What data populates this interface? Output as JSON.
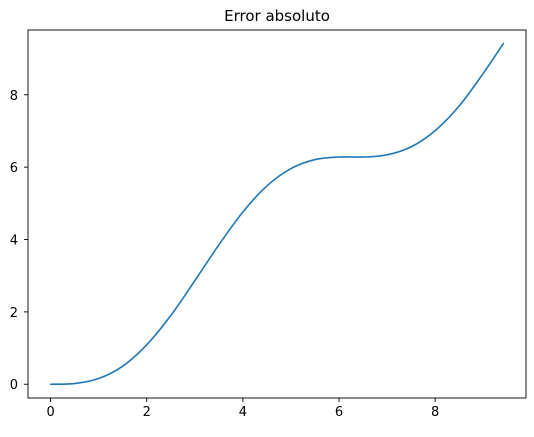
{
  "chart_data": {
    "type": "line",
    "title": "Error absoluto",
    "xlabel": "",
    "ylabel": "",
    "xlim": [
      -0.47,
      9.89
    ],
    "ylim": [
      -0.38,
      9.79
    ],
    "xticks": [
      0,
      2,
      4,
      6,
      8
    ],
    "yticks": [
      0,
      2,
      4,
      6,
      8
    ],
    "xtick_labels": [
      "0",
      "2",
      "4",
      "6",
      "8"
    ],
    "ytick_labels": [
      "0",
      "2",
      "4",
      "6",
      "8"
    ],
    "grid": false,
    "legend": "none",
    "series": [
      {
        "color": "#1f77b4",
        "x": [
          0,
          0.5,
          1.0,
          1.5,
          2.0,
          2.5,
          3.0,
          3.5,
          4.0,
          4.5,
          5.0,
          5.5,
          6.0,
          6.5,
          7.0,
          7.5,
          8.0,
          8.5,
          9.0,
          9.42
        ],
        "y": [
          0,
          0.02,
          0.16,
          0.5,
          1.09,
          1.9,
          2.86,
          3.85,
          4.76,
          5.48,
          5.96,
          6.21,
          6.28,
          6.28,
          6.34,
          6.56,
          7.01,
          7.69,
          8.59,
          9.42
        ]
      }
    ]
  }
}
